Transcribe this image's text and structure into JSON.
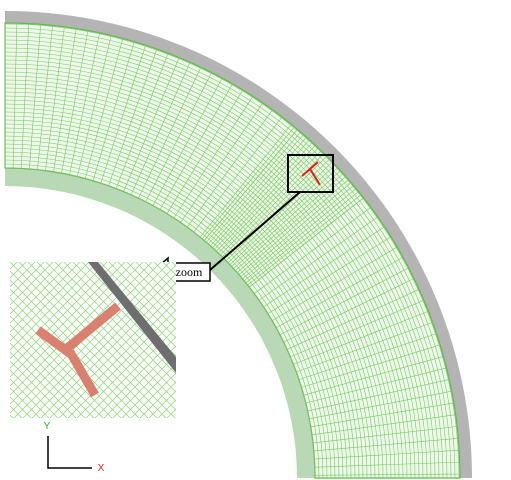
{
  "callout": {
    "label": "zoom"
  },
  "axes": {
    "y_label": "Y",
    "x_label": "X"
  }
}
